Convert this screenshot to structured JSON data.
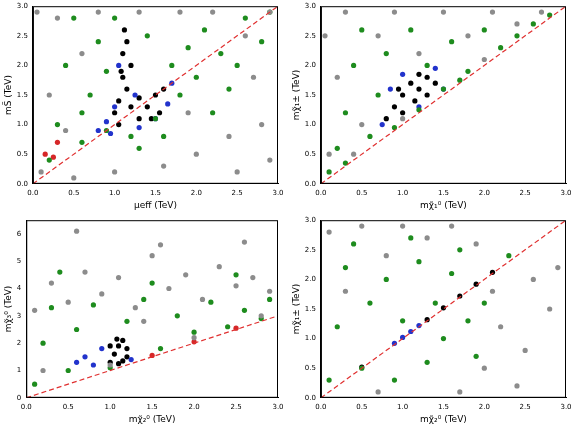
{
  "chart_data": [
    {
      "type": "scatter",
      "xlabel": "μeff (TeV)",
      "ylabel": "mS̃ (TeV)",
      "grid": false,
      "xlim": [
        0,
        3
      ],
      "ylim": [
        0,
        3
      ],
      "xticks": [
        {
          "value": 0,
          "label": "0.0"
        },
        {
          "value": 0.5,
          "label": "0.5"
        },
        {
          "value": 1,
          "label": "1.0"
        },
        {
          "value": 1.5,
          "label": "1.5"
        },
        {
          "value": 2,
          "label": "2.0"
        },
        {
          "value": 2.5,
          "label": "2.5"
        },
        {
          "value": 3,
          "label": "3.0"
        }
      ],
      "yticks": [
        {
          "value": 0,
          "label": "0.0"
        },
        {
          "value": 0.5,
          "label": "0.5"
        },
        {
          "value": 1,
          "label": "1.0"
        },
        {
          "value": 1.5,
          "label": "1.5"
        },
        {
          "value": 2,
          "label": "2.0"
        },
        {
          "value": 2.5,
          "label": "2.5"
        },
        {
          "value": 3,
          "label": "3.0"
        }
      ],
      "series": [
        {
          "color": "#8c8c8c",
          "marker": "circle",
          "x": [
            0.1,
            0.2,
            0.3,
            0.5,
            0.6,
            0.8,
            1.0,
            1.3,
            1.6,
            1.8,
            2.0,
            2.2,
            2.4,
            2.6,
            2.8,
            2.9,
            2.5,
            2.9,
            0.05,
            1.9,
            2.7,
            0.4
          ],
          "values": [
            0.2,
            1.5,
            2.8,
            0.1,
            2.2,
            2.9,
            0.2,
            2.9,
            0.3,
            2.9,
            0.5,
            2.9,
            0.8,
            2.5,
            1.0,
            2.9,
            0.2,
            0.4,
            2.9,
            1.2,
            1.8,
            0.9
          ]
        },
        {
          "color": "#1e8c1e",
          "marker": "circle",
          "x": [
            0.2,
            0.3,
            0.4,
            0.5,
            0.6,
            0.7,
            0.8,
            0.9,
            1.0,
            1.2,
            1.4,
            1.5,
            1.7,
            1.8,
            2.0,
            2.1,
            2.2,
            2.3,
            2.5,
            2.6,
            2.8,
            2.9,
            1.3,
            1.6,
            0.6,
            0.9,
            1.9,
            2.4
          ],
          "values": [
            0.4,
            1.0,
            2.0,
            2.8,
            0.7,
            1.5,
            2.4,
            0.9,
            2.8,
            0.8,
            2.5,
            1.1,
            2.0,
            1.5,
            1.8,
            2.6,
            1.2,
            2.2,
            2.0,
            2.8,
            2.4,
            2.9,
            0.6,
            0.8,
            1.2,
            1.9,
            2.3,
            1.6
          ]
        },
        {
          "color": "#2233cc",
          "marker": "circle",
          "x": [
            0.8,
            0.9,
            1.0,
            1.05,
            1.25,
            1.5,
            1.65,
            1.7,
            0.95,
            1.3
          ],
          "values": [
            0.9,
            1.05,
            1.3,
            2.0,
            1.5,
            1.1,
            1.35,
            1.7,
            0.85,
            0.95
          ]
        },
        {
          "color": "#000000",
          "marker": "circle",
          "x": [
            1.05,
            1.1,
            1.1,
            1.12,
            1.15,
            1.0,
            1.2,
            1.2,
            1.3,
            1.4,
            1.5,
            1.6,
            1.45,
            1.55,
            1.3,
            1.05,
            1.15,
            1.08
          ],
          "values": [
            1.4,
            1.8,
            2.2,
            2.6,
            1.6,
            1.2,
            2.0,
            1.3,
            1.1,
            1.3,
            1.5,
            1.6,
            1.1,
            1.2,
            1.45,
            1.0,
            2.4,
            1.9
          ]
        },
        {
          "color": "#d62728",
          "marker": "circle",
          "x": [
            0.15,
            0.25,
            0.3
          ],
          "values": [
            0.5,
            0.45,
            0.7
          ]
        },
        {
          "type": "line",
          "line_style": "dashed",
          "color": "#e03030",
          "x": [
            0,
            3
          ],
          "values": [
            0,
            3
          ]
        }
      ]
    },
    {
      "type": "scatter",
      "xlabel": "mχ̃₁⁰ (TeV)",
      "ylabel": "mχ̃₁± (TeV)",
      "grid": false,
      "xlim": [
        0,
        3
      ],
      "ylim": [
        0,
        3
      ],
      "xticks": [
        {
          "value": 0,
          "label": "0.0"
        },
        {
          "value": 0.5,
          "label": "0.5"
        },
        {
          "value": 1,
          "label": "1.0"
        },
        {
          "value": 1.5,
          "label": "1.5"
        },
        {
          "value": 2,
          "label": "2.0"
        },
        {
          "value": 2.5,
          "label": "2.5"
        },
        {
          "value": 3,
          "label": "3.0"
        }
      ],
      "yticks": [
        {
          "value": 0,
          "label": "0.0"
        },
        {
          "value": 0.5,
          "label": "0.5"
        },
        {
          "value": 1,
          "label": "1.0"
        },
        {
          "value": 1.5,
          "label": "1.5"
        },
        {
          "value": 2,
          "label": "2.0"
        },
        {
          "value": 2.5,
          "label": "2.5"
        },
        {
          "value": 3,
          "label": "3.0"
        }
      ],
      "series": [
        {
          "color": "#8c8c8c",
          "marker": "circle",
          "x": [
            0.1,
            0.2,
            0.3,
            0.5,
            0.7,
            0.9,
            1.2,
            1.5,
            1.8,
            2.1,
            2.4,
            2.7,
            0.05,
            1.0,
            2.0,
            0.4
          ],
          "values": [
            0.5,
            1.8,
            2.9,
            1.0,
            2.5,
            2.9,
            2.2,
            2.9,
            2.5,
            2.9,
            2.7,
            2.9,
            2.5,
            1.1,
            2.1,
            0.5
          ]
        },
        {
          "color": "#1e8c1e",
          "marker": "circle",
          "x": [
            0.1,
            0.2,
            0.3,
            0.4,
            0.5,
            0.6,
            0.7,
            0.8,
            0.9,
            1.1,
            1.3,
            1.5,
            1.6,
            1.8,
            2.0,
            2.2,
            2.4,
            2.6,
            2.8,
            1.2,
            0.3,
            1.7
          ],
          "values": [
            0.2,
            0.6,
            1.2,
            2.0,
            2.6,
            0.8,
            1.5,
            2.2,
            0.95,
            2.6,
            2.0,
            1.6,
            2.4,
            1.9,
            2.6,
            2.3,
            2.5,
            2.7,
            2.85,
            1.25,
            0.35,
            1.75
          ]
        },
        {
          "color": "#2233cc",
          "marker": "circle",
          "x": [
            0.75,
            0.85,
            1.0,
            1.4,
            1.5,
            1.2
          ],
          "values": [
            1.0,
            1.6,
            1.85,
            1.95,
            1.6,
            1.3
          ]
        },
        {
          "color": "#000000",
          "marker": "circle",
          "x": [
            0.8,
            0.9,
            1.0,
            1.1,
            1.2,
            1.3,
            1.4,
            1.0,
            1.15,
            1.3,
            0.95,
            1.2
          ],
          "values": [
            1.1,
            1.3,
            1.5,
            1.7,
            1.6,
            1.8,
            1.7,
            1.2,
            1.4,
            1.5,
            1.6,
            1.85
          ]
        },
        {
          "type": "line",
          "line_style": "dashed",
          "color": "#e03030",
          "x": [
            0,
            3
          ],
          "values": [
            0,
            3
          ]
        }
      ]
    },
    {
      "type": "scatter",
      "xlabel": "mχ̃₂⁰ (TeV)",
      "ylabel": "mχ̃₃⁰ (TeV)",
      "grid": false,
      "xlim": [
        0,
        3
      ],
      "ylim": [
        0,
        6.5
      ],
      "xticks": [
        {
          "value": 0,
          "label": "0.0"
        },
        {
          "value": 0.5,
          "label": "0.5"
        },
        {
          "value": 1,
          "label": "1.0"
        },
        {
          "value": 1.5,
          "label": "1.5"
        },
        {
          "value": 2,
          "label": "2.0"
        },
        {
          "value": 2.5,
          "label": "2.5"
        },
        {
          "value": 3,
          "label": "3.0"
        }
      ],
      "yticks": [
        0,
        1,
        2,
        3,
        4,
        5,
        6
      ],
      "series": [
        {
          "color": "#8c8c8c",
          "marker": "circle",
          "x": [
            0.1,
            0.3,
            0.5,
            0.7,
            0.9,
            1.1,
            1.3,
            1.5,
            1.7,
            1.9,
            2.1,
            2.3,
            2.5,
            2.7,
            2.9,
            0.2,
            1.0,
            2.0,
            2.8,
            0.6,
            1.6,
            2.6,
            1.4
          ],
          "values": [
            3.2,
            4.2,
            3.5,
            4.6,
            3.8,
            4.4,
            3.3,
            5.2,
            4.0,
            4.5,
            3.6,
            4.8,
            4.1,
            4.4,
            3.9,
            1.0,
            1.2,
            2.2,
            3.0,
            6.1,
            5.6,
            5.7,
            2.8
          ]
        },
        {
          "color": "#1e8c1e",
          "marker": "circle",
          "x": [
            0.1,
            0.2,
            0.3,
            0.5,
            0.6,
            0.8,
            1.0,
            1.2,
            1.4,
            1.6,
            1.8,
            2.0,
            2.2,
            2.4,
            2.6,
            2.8,
            2.9,
            0.4,
            1.5,
            2.5
          ],
          "values": [
            0.5,
            2.0,
            3.3,
            1.0,
            2.5,
            3.4,
            1.1,
            2.8,
            3.6,
            1.8,
            3.0,
            2.4,
            3.5,
            2.6,
            3.2,
            2.9,
            3.6,
            4.6,
            4.2,
            4.5
          ]
        },
        {
          "color": "#2233cc",
          "marker": "circle",
          "x": [
            0.6,
            0.7,
            0.8,
            0.9,
            1.25
          ],
          "values": [
            1.3,
            1.5,
            1.2,
            1.8,
            1.4
          ]
        },
        {
          "color": "#000000",
          "marker": "circle",
          "x": [
            1.0,
            1.05,
            1.1,
            1.15,
            1.2,
            1.1,
            1.0,
            1.2,
            1.08,
            1.15
          ],
          "values": [
            1.3,
            1.6,
            1.9,
            2.1,
            1.5,
            1.25,
            1.9,
            1.8,
            2.15,
            1.35
          ]
        },
        {
          "color": "#d62728",
          "marker": "circle",
          "x": [
            1.5,
            2.0,
            2.5
          ],
          "values": [
            1.55,
            2.05,
            2.55
          ]
        },
        {
          "type": "line",
          "line_style": "dashed",
          "color": "#e03030",
          "x": [
            0,
            3
          ],
          "values": [
            0,
            3
          ]
        }
      ]
    },
    {
      "type": "scatter",
      "xlabel": "mχ̃₂⁰ (TeV)",
      "ylabel": "mχ̃₁± (TeV)",
      "grid": false,
      "xlim": [
        0,
        3
      ],
      "ylim": [
        0,
        3
      ],
      "xticks": [
        {
          "value": 0,
          "label": "0.0"
        },
        {
          "value": 0.5,
          "label": "0.5"
        },
        {
          "value": 1,
          "label": "1.0"
        },
        {
          "value": 1.5,
          "label": "1.5"
        },
        {
          "value": 2,
          "label": "2.0"
        },
        {
          "value": 2.5,
          "label": "2.5"
        },
        {
          "value": 3,
          "label": "3.0"
        }
      ],
      "yticks": [
        {
          "value": 0,
          "label": "0.0"
        },
        {
          "value": 0.5,
          "label": "0.5"
        },
        {
          "value": 1,
          "label": "1.0"
        },
        {
          "value": 1.5,
          "label": "1.5"
        },
        {
          "value": 2,
          "label": "2.0"
        },
        {
          "value": 2.5,
          "label": "2.5"
        },
        {
          "value": 3,
          "label": "3.0"
        }
      ],
      "series": [
        {
          "color": "#8c8c8c",
          "marker": "circle",
          "x": [
            0.1,
            0.3,
            0.5,
            0.8,
            1.0,
            1.3,
            1.6,
            1.9,
            2.2,
            2.5,
            2.8,
            2.4,
            2.0,
            1.7,
            2.9,
            2.6,
            0.7,
            2.1
          ],
          "values": [
            2.8,
            1.8,
            2.9,
            2.4,
            2.9,
            2.7,
            2.9,
            2.6,
            1.2,
            0.8,
            1.5,
            0.2,
            0.5,
            0.1,
            2.2,
            2.0,
            0.1,
            1.8
          ]
        },
        {
          "color": "#1e8c1e",
          "marker": "circle",
          "x": [
            0.1,
            0.2,
            0.3,
            0.5,
            0.6,
            0.8,
            0.9,
            1.0,
            1.2,
            1.3,
            1.4,
            1.5,
            1.6,
            1.8,
            1.9,
            2.0,
            0.4,
            1.1,
            2.3,
            1.7
          ],
          "values": [
            0.3,
            1.2,
            2.2,
            0.5,
            1.6,
            2.0,
            0.3,
            1.3,
            2.3,
            0.6,
            1.6,
            1.0,
            2.1,
            1.3,
            0.7,
            1.6,
            2.6,
            2.7,
            2.4,
            2.5
          ]
        },
        {
          "color": "#2233cc",
          "marker": "circle",
          "x": [
            0.9,
            1.0,
            1.1,
            1.2
          ],
          "values": [
            0.92,
            1.02,
            1.12,
            1.22
          ]
        },
        {
          "color": "#000000",
          "marker": "circle",
          "x": [
            1.3,
            1.5,
            1.7,
            1.9,
            2.1,
            0.5
          ],
          "values": [
            1.32,
            1.52,
            1.72,
            1.92,
            2.12,
            0.52
          ]
        },
        {
          "type": "line",
          "line_style": "dashed",
          "color": "#e03030",
          "x": [
            0,
            3
          ],
          "values": [
            0,
            3
          ]
        }
      ]
    }
  ]
}
